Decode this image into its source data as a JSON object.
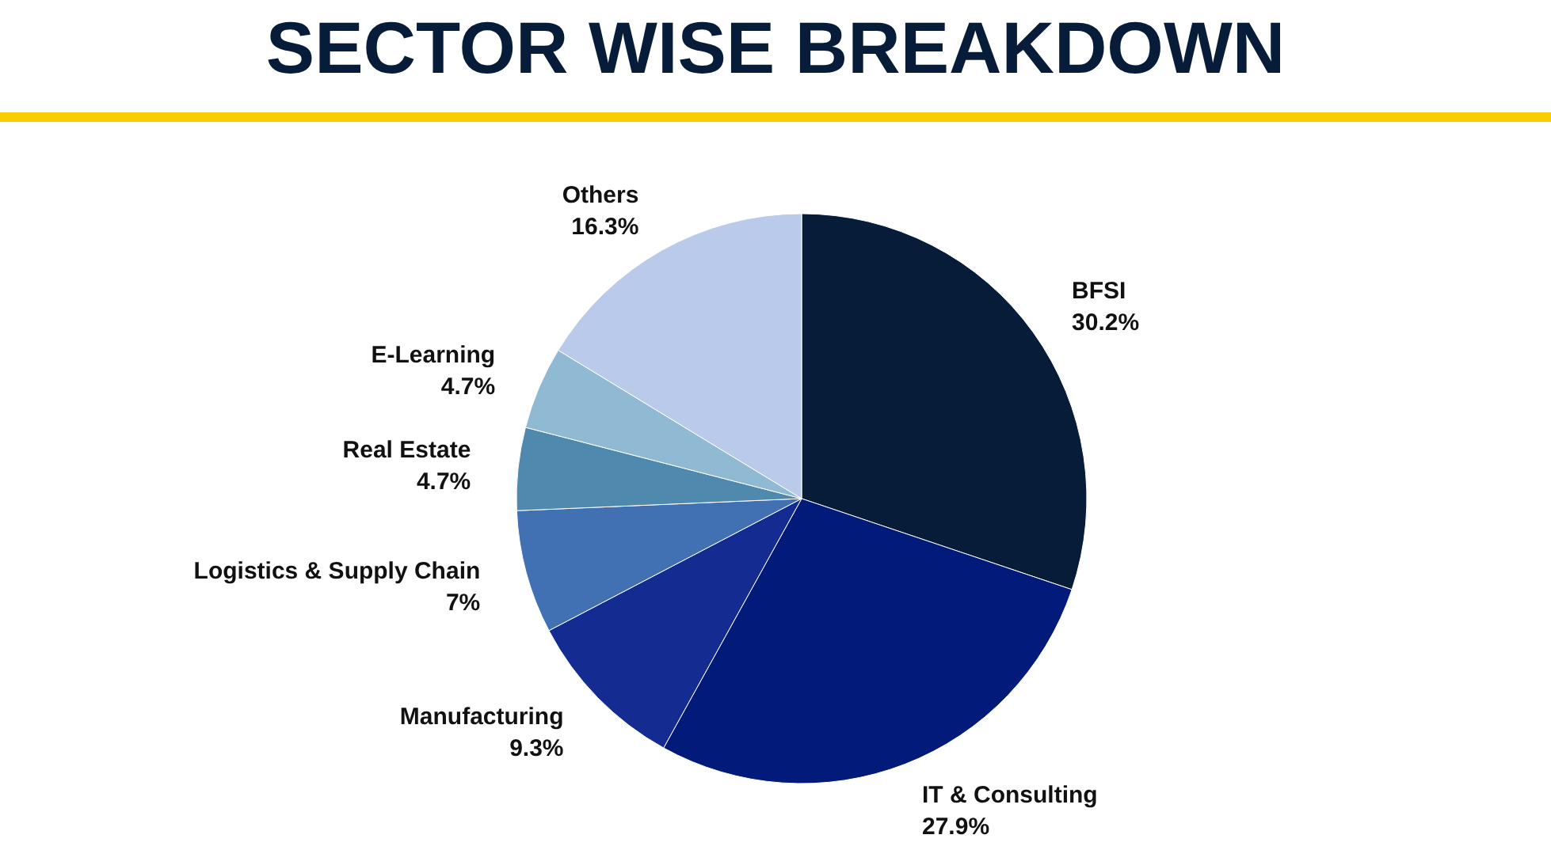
{
  "chart_data": {
    "type": "pie",
    "title": "SECTOR WISE BREAKDOWN",
    "categories": [
      "BFSI",
      "IT & Consulting",
      "Manufacturing",
      "Logistics & Supply Chain",
      "Real Estate",
      "E-Learning",
      "Others"
    ],
    "values": [
      30.2,
      27.9,
      9.3,
      7,
      4.7,
      4.7,
      16.3
    ],
    "value_labels": [
      "30.2%",
      "27.9%",
      "9.3%",
      "7%",
      "4.7%",
      "4.7%",
      "16.3%"
    ],
    "colors": [
      "#061c38",
      "#021a7a",
      "#142c91",
      "#4170b3",
      "#4f89ad",
      "#90b9d3",
      "#b9caea"
    ],
    "legend": false
  }
}
